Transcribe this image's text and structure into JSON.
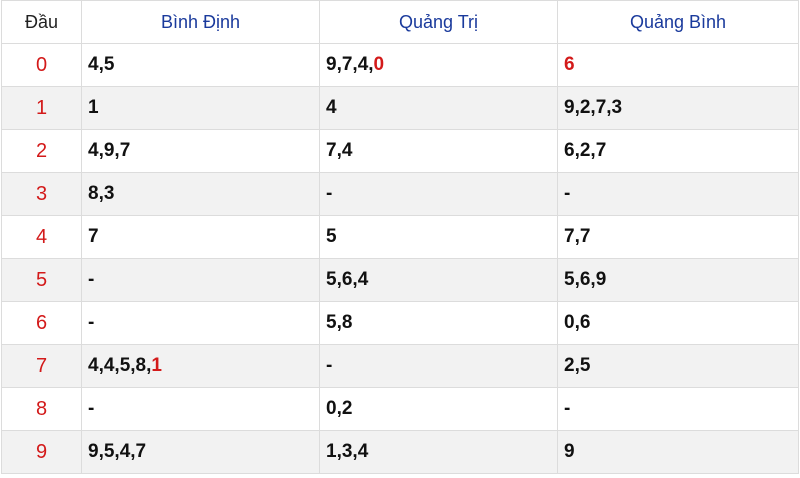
{
  "headers": {
    "first": "Đầu",
    "provinces": [
      "Bình Định",
      "Quảng Trị",
      "Quảng Bình"
    ]
  },
  "rows": [
    {
      "head": "0",
      "cells": [
        {
          "text": "4,5",
          "hl": ""
        },
        {
          "text": "9,7,4,",
          "hl": "0"
        },
        {
          "text": "",
          "hl": "6"
        }
      ]
    },
    {
      "head": "1",
      "cells": [
        {
          "text": "1",
          "hl": ""
        },
        {
          "text": "4",
          "hl": ""
        },
        {
          "text": "9,2,7,3",
          "hl": ""
        }
      ]
    },
    {
      "head": "2",
      "cells": [
        {
          "text": "4,9,7",
          "hl": ""
        },
        {
          "text": "7,4",
          "hl": ""
        },
        {
          "text": "6,2,7",
          "hl": ""
        }
      ]
    },
    {
      "head": "3",
      "cells": [
        {
          "text": "8,3",
          "hl": ""
        },
        {
          "text": "-",
          "hl": ""
        },
        {
          "text": "-",
          "hl": ""
        }
      ]
    },
    {
      "head": "4",
      "cells": [
        {
          "text": "7",
          "hl": ""
        },
        {
          "text": "5",
          "hl": ""
        },
        {
          "text": "7,7",
          "hl": ""
        }
      ]
    },
    {
      "head": "5",
      "cells": [
        {
          "text": "-",
          "hl": ""
        },
        {
          "text": "5,6,4",
          "hl": ""
        },
        {
          "text": "5,6,9",
          "hl": ""
        }
      ]
    },
    {
      "head": "6",
      "cells": [
        {
          "text": "-",
          "hl": ""
        },
        {
          "text": "5,8",
          "hl": ""
        },
        {
          "text": "0,6",
          "hl": ""
        }
      ]
    },
    {
      "head": "7",
      "cells": [
        {
          "text": "4,4,5,8,",
          "hl": "1"
        },
        {
          "text": "-",
          "hl": ""
        },
        {
          "text": "2,5",
          "hl": ""
        }
      ]
    },
    {
      "head": "8",
      "cells": [
        {
          "text": "-",
          "hl": ""
        },
        {
          "text": "0,2",
          "hl": ""
        },
        {
          "text": "-",
          "hl": ""
        }
      ]
    },
    {
      "head": "9",
      "cells": [
        {
          "text": "9,5,4,7",
          "hl": ""
        },
        {
          "text": "1,3,4",
          "hl": ""
        },
        {
          "text": "9",
          "hl": ""
        }
      ]
    }
  ],
  "colors": {
    "province_header": "#1a3a9c",
    "head_digit": "#d31a1a",
    "highlight": "#d31a1a",
    "stripe": "#f2f2f2",
    "border": "#dcdcdc"
  }
}
